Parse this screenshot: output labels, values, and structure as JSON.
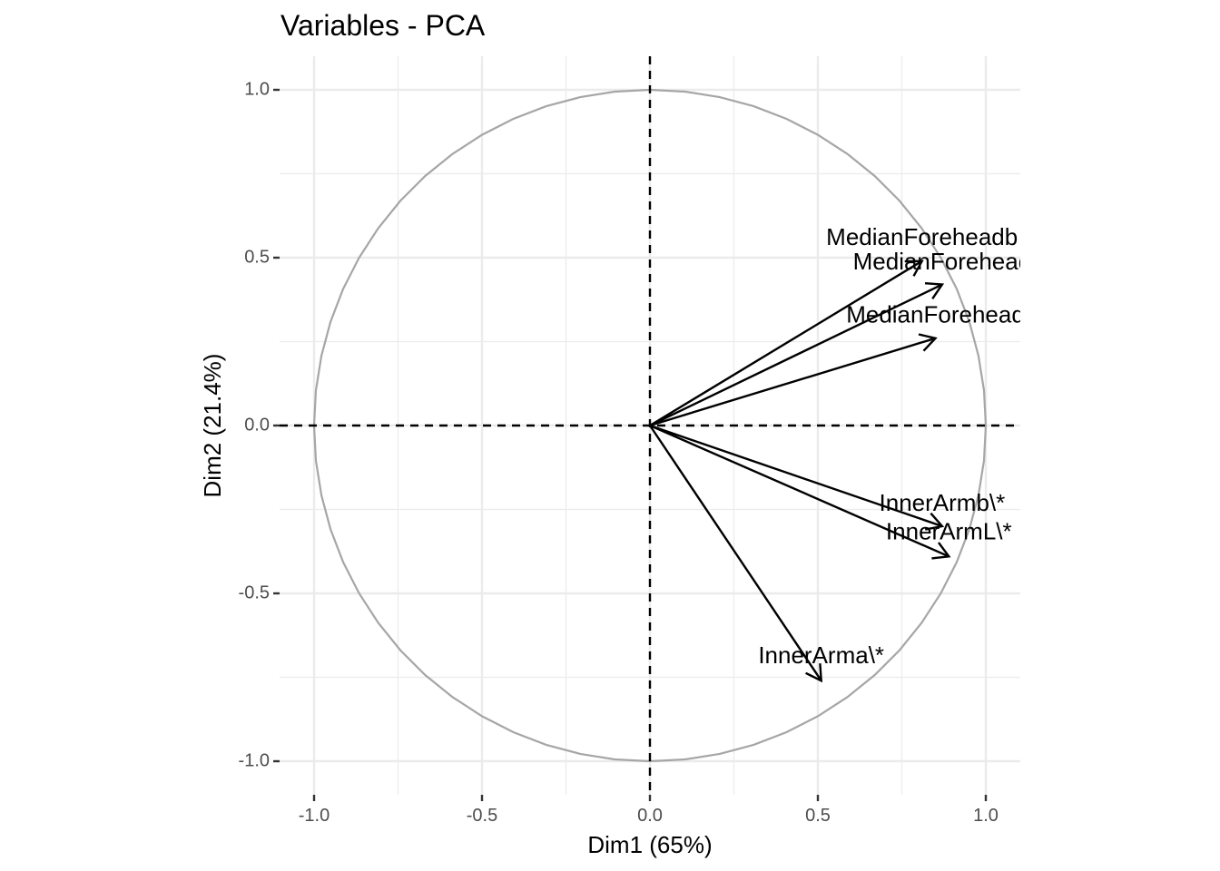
{
  "chart_data": {
    "type": "pca-correlation-circle",
    "title": "Variables - PCA",
    "xlabel": "Dim1 (65%)",
    "ylabel": "Dim2 (21.4%)",
    "xlim": [
      -1.1,
      1.1
    ],
    "ylim": [
      -1.1,
      1.1
    ],
    "x_ticks": [
      -1.0,
      -0.5,
      0.0,
      0.5,
      1.0
    ],
    "y_ticks": [
      -1.0,
      -0.5,
      0.0,
      0.5,
      1.0
    ],
    "x_tick_labels": [
      "-1.0",
      "-0.5",
      "0.0",
      "0.5",
      "1.0"
    ],
    "y_tick_labels": [
      "-1.0",
      "-0.5",
      "0.0",
      "0.5",
      "1.0"
    ],
    "grid": true,
    "unit_circle": true,
    "reference_lines": [
      "x=0 dashed",
      "y=0 dashed"
    ],
    "colors": {
      "grid": "#ebebeb",
      "circle": "#a6a6a6",
      "arrow": "#000000",
      "tick_text": "#4d4d4d",
      "text": "#000000"
    },
    "variables": [
      {
        "name": "MedianForeheadb",
        "x": 0.81,
        "y": 0.49,
        "label_x": 0.81,
        "label_y": 0.557
      },
      {
        "name": "MedianForehead",
        "x": 0.87,
        "y": 0.42,
        "label_x": 0.87,
        "label_y": 0.483
      },
      {
        "name": "MedianForehead",
        "x": 0.85,
        "y": 0.26,
        "label_x": 0.85,
        "label_y": 0.325
      },
      {
        "name": "InnerArmb\\*",
        "x": 0.87,
        "y": -0.3,
        "label_x": 0.87,
        "label_y": -0.235
      },
      {
        "name": "InnerArmL\\*",
        "x": 0.89,
        "y": -0.39,
        "label_x": 0.89,
        "label_y": -0.32
      },
      {
        "name": "InnerArma\\*",
        "x": 0.51,
        "y": -0.76,
        "label_x": 0.51,
        "label_y": -0.69
      }
    ]
  }
}
